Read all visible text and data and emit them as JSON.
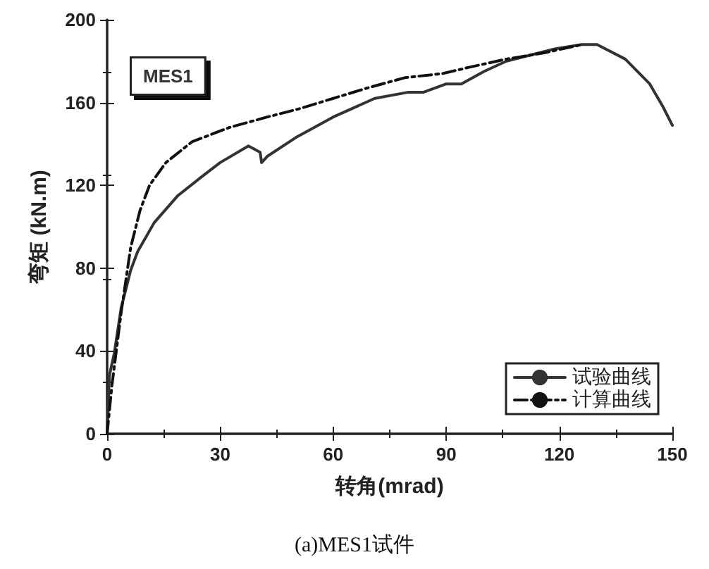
{
  "chart_data": {
    "type": "line",
    "title": "(a)MES1试件",
    "xlabel": "转角(mrad)",
    "ylabel": "弯矩 (kN.m)",
    "annotations": [
      "MES1"
    ],
    "xlim": [
      0,
      150
    ],
    "xticks": [
      0,
      30,
      60,
      90,
      120,
      150
    ],
    "ylim": [
      0,
      200
    ],
    "yticks": [
      0,
      40,
      80,
      120,
      160,
      200
    ],
    "grid": false,
    "legend": "bottom right",
    "marker": "none",
    "series": [
      {
        "name": "试验曲线",
        "color": "#333333",
        "line_style": "solid",
        "x": [
          0,
          0.6,
          1.9,
          3.75,
          6.25,
          8.1,
          12.5,
          18.75,
          25,
          30,
          37.5,
          40.6,
          41,
          42.5,
          50,
          60,
          71,
          80,
          84,
          90,
          94,
          100,
          106,
          112.5,
          119,
          126,
          130,
          137.5,
          144,
          147.5,
          150
        ],
        "values": [
          0,
          28,
          39,
          61,
          79,
          88,
          102,
          115,
          124,
          131,
          139,
          136,
          131,
          134,
          143,
          153,
          162,
          165,
          165,
          169,
          169,
          175,
          180,
          183,
          186,
          188,
          188,
          181,
          169,
          158,
          149
        ]
      },
      {
        "name": "计算曲线",
        "color": "#111111",
        "line_style": "dashdot",
        "x": [
          0,
          1.25,
          3.75,
          6.25,
          8.75,
          11.25,
          15.6,
          22.5,
          32.5,
          42.5,
          51,
          60,
          69,
          79,
          89,
          96,
          106,
          116,
          126
        ],
        "values": [
          0,
          23,
          59,
          90,
          108,
          120,
          131,
          141,
          148,
          153,
          157,
          162,
          167,
          172,
          174,
          177,
          181,
          184,
          188
        ]
      }
    ]
  }
}
